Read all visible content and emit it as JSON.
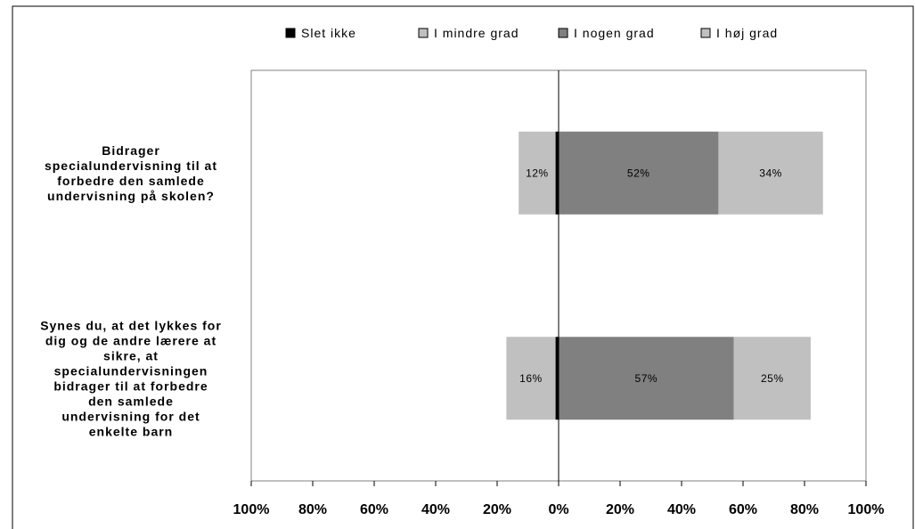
{
  "chart_data": {
    "type": "bar",
    "orientation": "horizontal",
    "stacked": "diverging",
    "categories": [
      "Bidrager specialundervisning til at forbedre den samlede undervisning på skolen?",
      "Synes du, at det lykkes for dig og de andre lærere at sikre, at specialundervisningen bidrager til at forbedre den samlede undervisning for det enkelte barn"
    ],
    "category_lines": [
      [
        "Bidrager",
        "specialundervisning til at",
        "forbedre den samlede",
        "undervisning på skolen?"
      ],
      [
        "Synes du, at det lykkes for",
        "dig og de andre lærere at",
        "sikre, at",
        "specialundervisningen",
        "bidrager til at forbedre",
        "den samlede",
        "undervisning for det",
        "enkelte barn"
      ]
    ],
    "series": [
      {
        "name": "Slet ikke",
        "color": "#000000",
        "values": [
          -1,
          -1
        ],
        "labels": [
          "",
          ""
        ]
      },
      {
        "name": "I mindre grad",
        "color": "#c0c0c0",
        "values": [
          -12,
          -16
        ],
        "labels": [
          "12%",
          "16%"
        ]
      },
      {
        "name": "I nogen grad",
        "color": "#808080",
        "values": [
          52,
          57
        ],
        "labels": [
          "52%",
          "57%"
        ]
      },
      {
        "name": "I høj grad",
        "color": "#c0c0c0",
        "values": [
          34,
          25
        ],
        "labels": [
          "34%",
          "25%"
        ]
      }
    ],
    "xlim": [
      -100,
      100
    ],
    "xticks": [
      -100,
      -80,
      -60,
      -40,
      -20,
      0,
      20,
      40,
      60,
      80,
      100
    ],
    "xtick_labels": [
      "100%",
      "80%",
      "60%",
      "40%",
      "20%",
      "0%",
      "20%",
      "40%",
      "60%",
      "80%",
      "100%"
    ],
    "title": "",
    "xlabel": "",
    "ylabel": "",
    "legend_position": "top",
    "grid": false
  }
}
